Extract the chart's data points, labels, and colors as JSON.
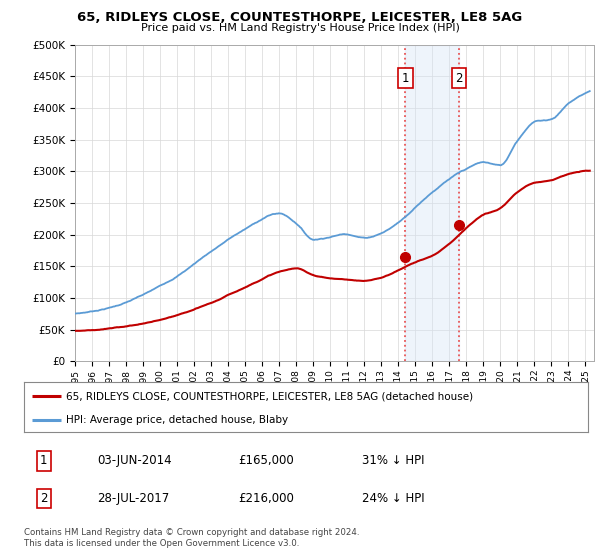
{
  "title": "65, RIDLEYS CLOSE, COUNTESTHORPE, LEICESTER, LE8 5AG",
  "subtitle": "Price paid vs. HM Land Registry's House Price Index (HPI)",
  "ylabel_ticks": [
    "£0",
    "£50K",
    "£100K",
    "£150K",
    "£200K",
    "£250K",
    "£300K",
    "£350K",
    "£400K",
    "£450K",
    "£500K"
  ],
  "ytick_values": [
    0,
    50000,
    100000,
    150000,
    200000,
    250000,
    300000,
    350000,
    400000,
    450000,
    500000
  ],
  "ylim": [
    0,
    500000
  ],
  "xlim_start": 1995.0,
  "xlim_end": 2025.5,
  "hpi_color": "#5b9bd5",
  "price_color": "#c00000",
  "marker_color": "#c00000",
  "sale1_x": 2014.42,
  "sale1_y": 165000,
  "sale2_x": 2017.57,
  "sale2_y": 216000,
  "vline_color": "#e85555",
  "shading_color": "#d6e4f7",
  "legend_house": "65, RIDLEYS CLOSE, COUNTESTHORPE, LEICESTER, LE8 5AG (detached house)",
  "legend_hpi": "HPI: Average price, detached house, Blaby",
  "table_row1": [
    "1",
    "03-JUN-2014",
    "£165,000",
    "31% ↓ HPI"
  ],
  "table_row2": [
    "2",
    "28-JUL-2017",
    "£216,000",
    "24% ↓ HPI"
  ],
  "footnote": "Contains HM Land Registry data © Crown copyright and database right 2024.\nThis data is licensed under the Open Government Licence v3.0.",
  "background_color": "#ffffff",
  "grid_color": "#d8d8d8",
  "hpi_waypoints_x": [
    1995,
    1997,
    1999,
    2001,
    2003,
    2005,
    2007,
    2008,
    2009,
    2010,
    2011,
    2012,
    2013,
    2014,
    2015,
    2016,
    2017,
    2018,
    2019,
    2020,
    2021,
    2022,
    2023,
    2024,
    2025.25
  ],
  "hpi_waypoints_y": [
    75000,
    85000,
    105000,
    135000,
    175000,
    210000,
    235000,
    220000,
    195000,
    200000,
    205000,
    200000,
    208000,
    225000,
    250000,
    275000,
    295000,
    310000,
    320000,
    315000,
    355000,
    385000,
    390000,
    415000,
    435000
  ],
  "house_waypoints_x": [
    1995,
    1997,
    1999,
    2001,
    2003,
    2005,
    2007,
    2008,
    2009,
    2010,
    2011,
    2012,
    2013,
    2014,
    2015,
    2016,
    2017,
    2018,
    2019,
    2020,
    2021,
    2022,
    2023,
    2024,
    2025.25
  ],
  "house_waypoints_y": [
    48000,
    52000,
    60000,
    72000,
    90000,
    115000,
    140000,
    145000,
    135000,
    130000,
    128000,
    125000,
    130000,
    142000,
    155000,
    165000,
    185000,
    210000,
    230000,
    240000,
    265000,
    280000,
    285000,
    295000,
    300000
  ]
}
